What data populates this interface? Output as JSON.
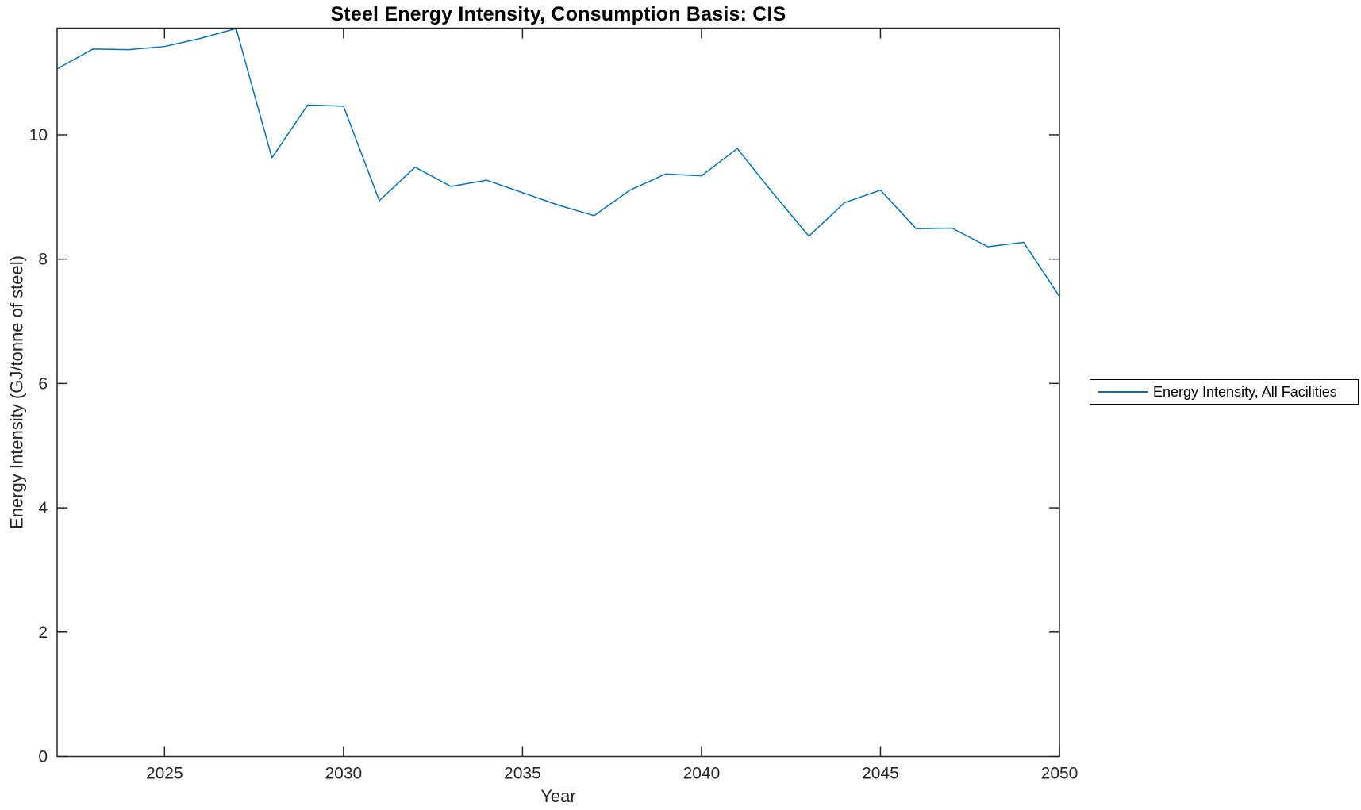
{
  "figure": {
    "title": "Steel Energy Intensity, Consumption Basis: CIS",
    "xlabel": "Year",
    "ylabel": "Energy Intensity (GJ/tonne of steel)"
  },
  "legend": {
    "label": "Energy Intensity, All Facilities"
  },
  "chart_data": {
    "type": "line",
    "title": "Steel Energy Intensity, Consumption Basis: CIS",
    "xlabel": "Year",
    "ylabel": "Energy Intensity (GJ/tonne of steel)",
    "x": [
      2022,
      2023,
      2024,
      2025,
      2026,
      2027,
      2028,
      2029,
      2030,
      2031,
      2032,
      2033,
      2034,
      2035,
      2036,
      2037,
      2038,
      2039,
      2040,
      2041,
      2042,
      2043,
      2044,
      2045,
      2046,
      2047,
      2048,
      2049,
      2050
    ],
    "series": [
      {
        "name": "Energy Intensity, All Facilities",
        "color": "#0072BD",
        "values": [
          11.06,
          11.38,
          11.37,
          11.42,
          11.55,
          11.71,
          9.63,
          10.48,
          10.46,
          8.94,
          9.48,
          9.17,
          9.27,
          9.07,
          8.87,
          8.7,
          9.11,
          9.37,
          9.34,
          9.78,
          9.06,
          8.37,
          8.91,
          9.11,
          8.49,
          8.5,
          8.2,
          8.27,
          7.4
        ]
      }
    ],
    "xlim": [
      2022,
      2050
    ],
    "ylim": [
      0,
      11.716
    ],
    "xticks": [
      2025,
      2030,
      2035,
      2040,
      2045,
      2050
    ],
    "yticks": [
      0,
      2,
      4,
      6,
      8,
      10
    ],
    "grid": false,
    "box": true,
    "legend_position": "outside-right",
    "axis_color": "#262626",
    "tick_label_color": "#262626",
    "background": "#ffffff"
  }
}
